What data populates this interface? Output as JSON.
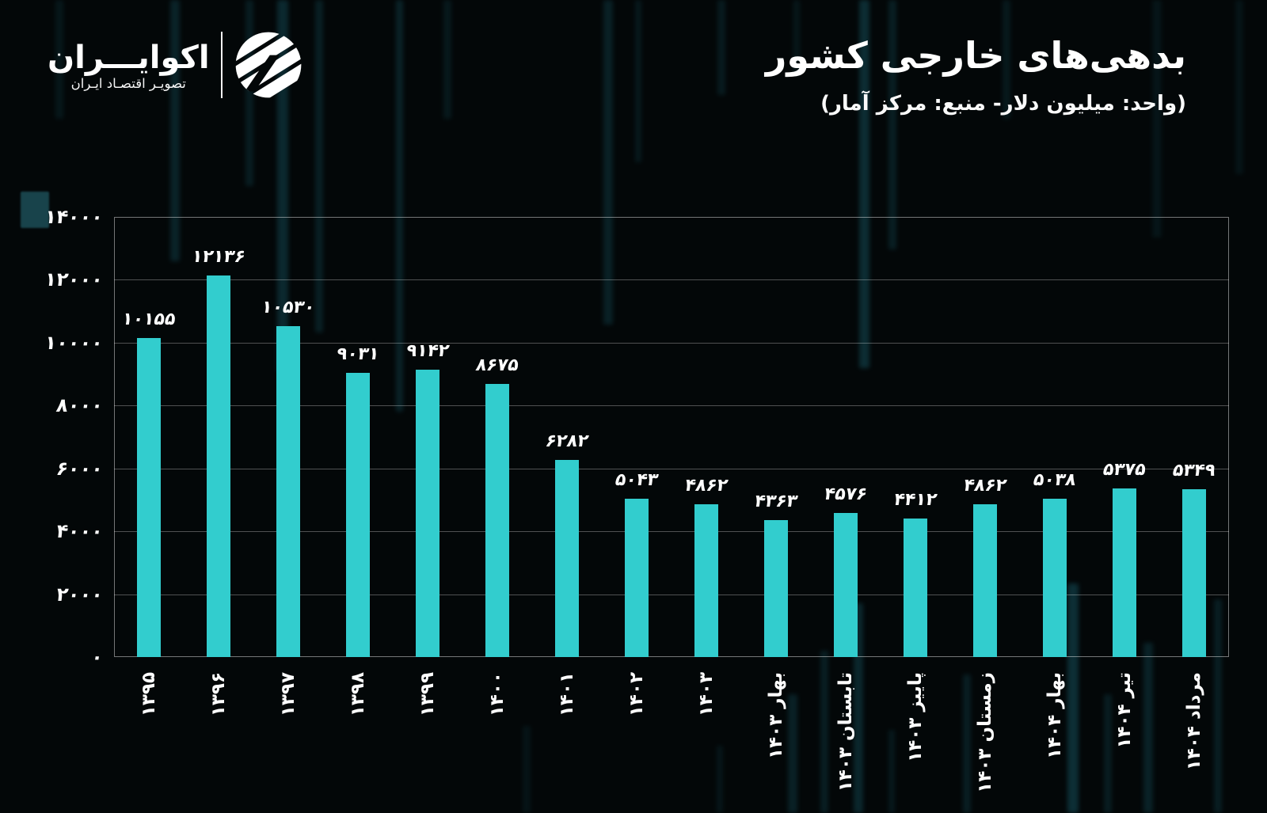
{
  "logo": {
    "wordmark": "اکوایـــران",
    "tagline": "تصویـر اقتصـاد ایـران"
  },
  "header": {
    "title": "بدهی‌های خارجی کشور",
    "subtitle": "(واحد: میلیون دلار- منبع: مرکز آمار)"
  },
  "chart_data": {
    "type": "bar",
    "title": "بدهی‌های خارجی کشور",
    "subtitle": "(واحد: میلیون دلار- منبع: مرکز آمار)",
    "unit": "میلیون دلار",
    "source": "مرکز آمار",
    "categories": [
      "۱۳۹۵",
      "۱۳۹۶",
      "۱۳۹۷",
      "۱۳۹۸",
      "۱۳۹۹",
      "۱۴۰۰",
      "۱۴۰۱",
      "۱۴۰۲",
      "۱۴۰۳",
      "بهار ۱۴۰۳",
      "تابستان ۱۴۰۳",
      "پاییز ۱۴۰۳",
      "زمستان ۱۴۰۳",
      "بهار ۱۴۰۴",
      "تیر ۱۴۰۴",
      "مرداد ۱۴۰۴"
    ],
    "values": [
      10155,
      12136,
      10530,
      9031,
      9142,
      8675,
      6282,
      5043,
      4862,
      4363,
      4576,
      4412,
      4862,
      5038,
      5375,
      5349
    ],
    "ylim": [
      0,
      14000
    ],
    "ytick_step": 2000,
    "grid": true,
    "legend_position": "none",
    "bar_color": "#32cdce",
    "text_color": "#ffffff",
    "digit_style": "persian"
  }
}
